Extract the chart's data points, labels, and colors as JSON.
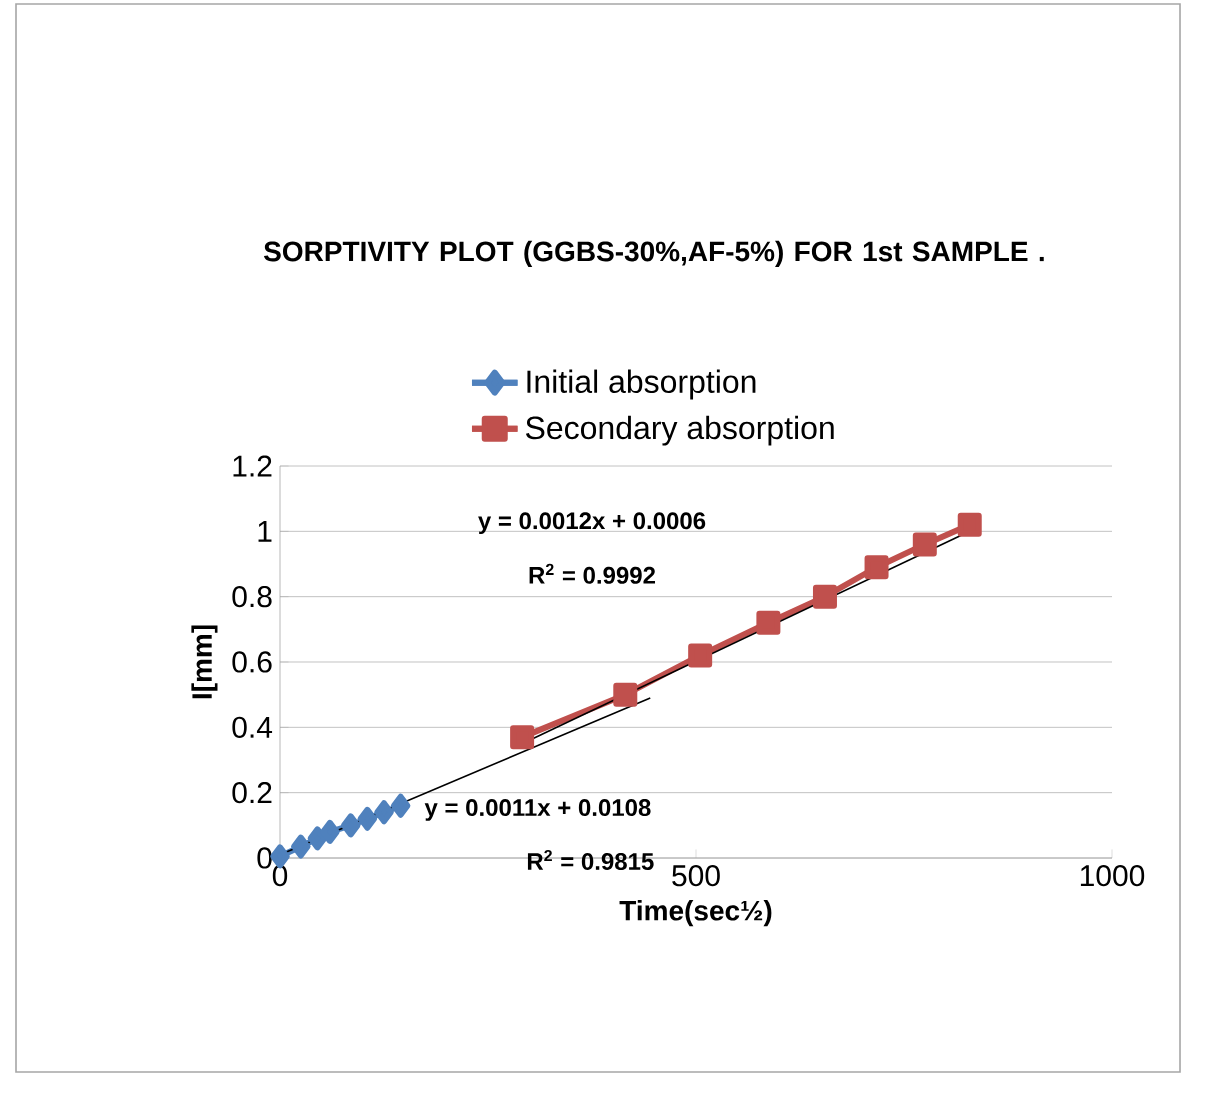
{
  "chart_data": {
    "type": "line",
    "title": "SORPTIVITY PLOT (GGBS-30%,AF-5%) FOR 1st  SAMPLE .",
    "xlabel": "Time(sec½)",
    "ylabel": "I[mm]",
    "xlim": [
      0,
      1000
    ],
    "xticks": [
      0,
      500,
      1000
    ],
    "ylim": [
      0,
      1.2
    ],
    "yticks": [
      0,
      0.2,
      0.4,
      0.6,
      0.8,
      1,
      1.2
    ],
    "grid": "y",
    "legend": "top",
    "series": [
      {
        "name": "Initial absorption",
        "color": "#4f81bd",
        "marker": "diamond",
        "x": [
          0,
          25,
          45,
          60,
          85,
          105,
          125,
          145
        ],
        "values": [
          0.005,
          0.035,
          0.06,
          0.08,
          0.1,
          0.12,
          0.14,
          0.16
        ]
      },
      {
        "name": "Secondary absorption",
        "color": "#c0504d",
        "marker": "square",
        "x": [
          291,
          415,
          505,
          587,
          655,
          717,
          775,
          829
        ],
        "values": [
          0.37,
          0.5,
          0.62,
          0.72,
          0.8,
          0.89,
          0.96,
          1.02
        ]
      },
      {
        "color": "#000000",
        "marker": "none",
        "x": [
          0,
          445
        ],
        "values": [
          0.01,
          0.49
        ]
      },
      {
        "color": "#000000",
        "marker": "none",
        "x": [
          291,
          829
        ],
        "values": [
          0.35,
          1.0
        ]
      }
    ],
    "annotations": [
      "y = 0.0012x + 0.0006",
      "R$^{2}$ = 0.9992",
      "y = 0.0011x + 0.0108",
      "R$^{2}$ = 0.9815"
    ]
  }
}
